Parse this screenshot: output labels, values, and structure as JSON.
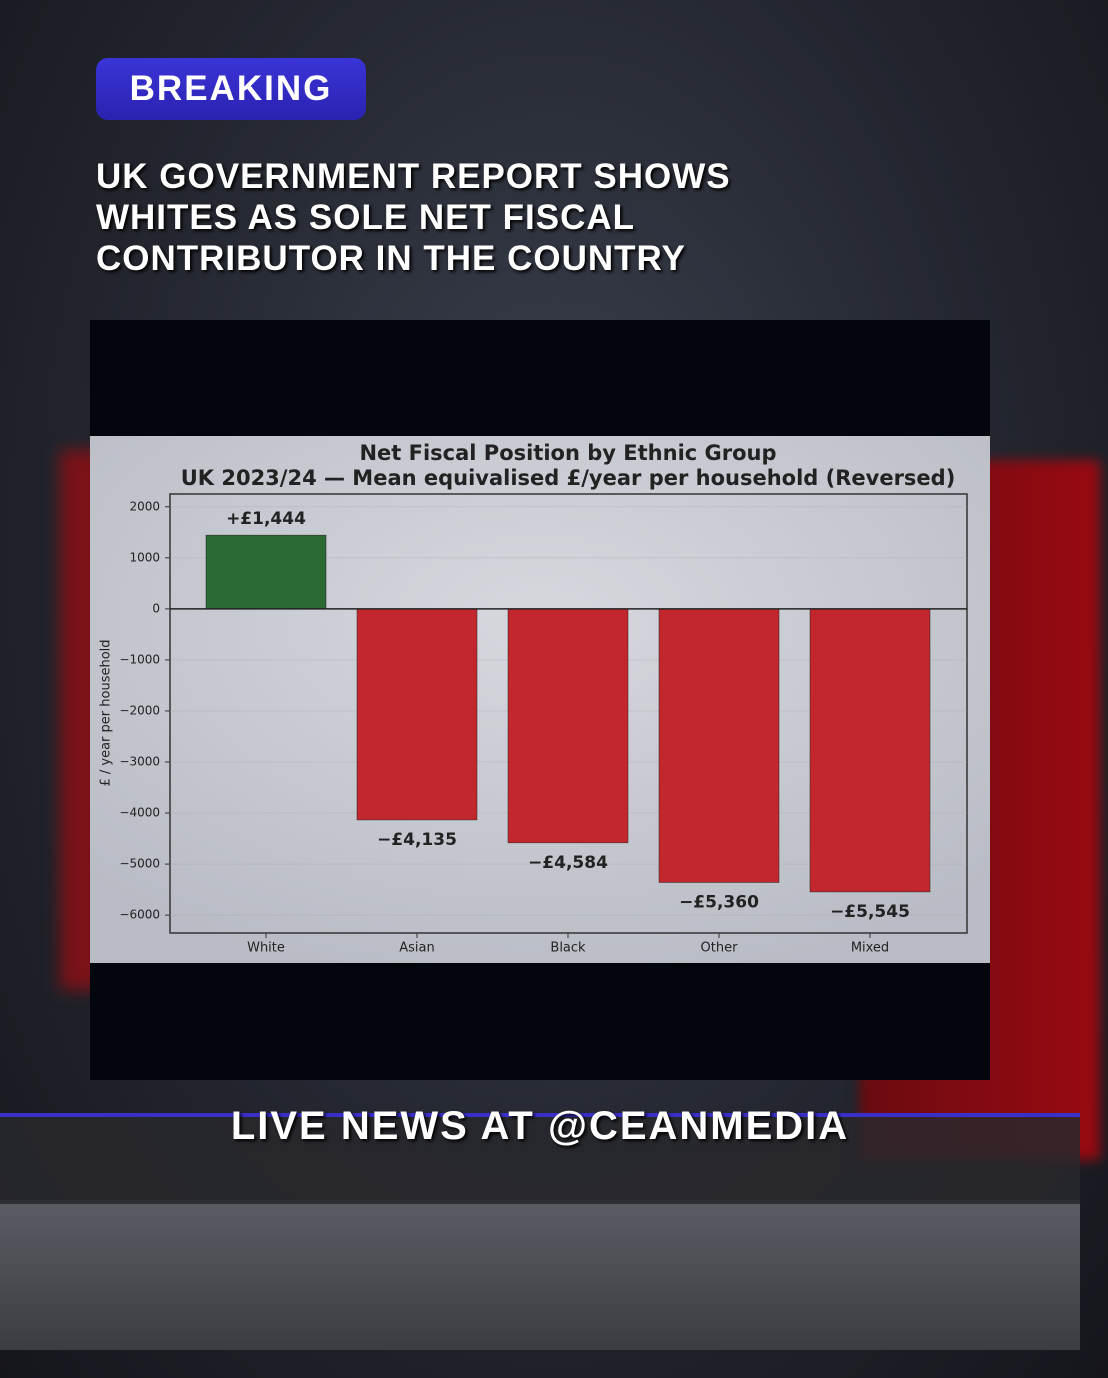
{
  "badge": "BREAKING",
  "headline": "UK GOVERNMENT REPORT SHOWS WHITES AS SOLE NET FISCAL CONTRIBUTOR IN THE COUNTRY",
  "footer": "LIVE NEWS AT @CEANMEDIA",
  "chart_data": {
    "type": "bar",
    "title": "Net Fiscal Position by Ethnic Group",
    "subtitle": "UK 2023/24 — Mean equivalised £/year per household (Reversed)",
    "y_label": "£ / year per household",
    "categories": [
      "White",
      "Asian",
      "Black",
      "Other",
      "Mixed"
    ],
    "values": [
      1444,
      -4135,
      -4584,
      -5360,
      -5545
    ],
    "value_labels": [
      "+£1,444",
      "−£4,135",
      "−£4,584",
      "−£5,360",
      "−£5,545"
    ],
    "colors": [
      "#2b6a33",
      "#c1272d",
      "#c1272d",
      "#c1272d",
      "#c1272d"
    ],
    "ylim": [
      -6350,
      2250
    ],
    "yticks": [
      2000,
      1000,
      0,
      {
        "value": -1000,
        "label": "−1000"
      },
      {
        "value": -2000,
        "label": "−2000"
      },
      {
        "value": -3000,
        "label": "−3000"
      },
      {
        "value": -4000,
        "label": "−4000"
      },
      {
        "value": -5000,
        "label": "−5000"
      },
      {
        "value": -6000,
        "label": "−6000"
      }
    ],
    "grid": true
  }
}
